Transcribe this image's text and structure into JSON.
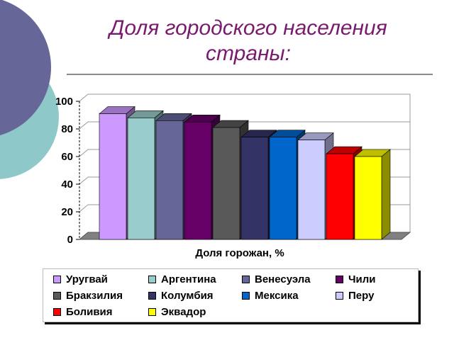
{
  "slide": {
    "title_line1": "Доля городского населения",
    "title_line2": "страны:"
  },
  "chart_data": {
    "type": "bar",
    "title": "",
    "xlabel": "Доля горожан, %",
    "ylabel": "",
    "ylim": [
      0,
      100
    ],
    "yticks": [
      0,
      20,
      40,
      60,
      80,
      100
    ],
    "categories": [
      "Доля горожан, %"
    ],
    "series": [
      {
        "name": "Уругвай",
        "values": [
          91
        ],
        "color": "#cc99ff"
      },
      {
        "name": "Аргентина",
        "values": [
          88
        ],
        "color": "#99cccc"
      },
      {
        "name": "Венесуэла",
        "values": [
          86
        ],
        "color": "#666699"
      },
      {
        "name": "Чили",
        "values": [
          85
        ],
        "color": "#660066"
      },
      {
        "name": "Бракзилия",
        "values": [
          81
        ],
        "color": "#595959"
      },
      {
        "name": "Колумбия",
        "values": [
          74
        ],
        "color": "#333366"
      },
      {
        "name": "Мексика",
        "values": [
          74
        ],
        "color": "#0066cc"
      },
      {
        "name": "Перу",
        "values": [
          72
        ],
        "color": "#ccccff"
      },
      {
        "name": "Боливия",
        "values": [
          62
        ],
        "color": "#ff0000"
      },
      {
        "name": "Эквадор",
        "values": [
          60
        ],
        "color": "#ffff00"
      }
    ],
    "grid": true,
    "legend_position": "bottom"
  }
}
